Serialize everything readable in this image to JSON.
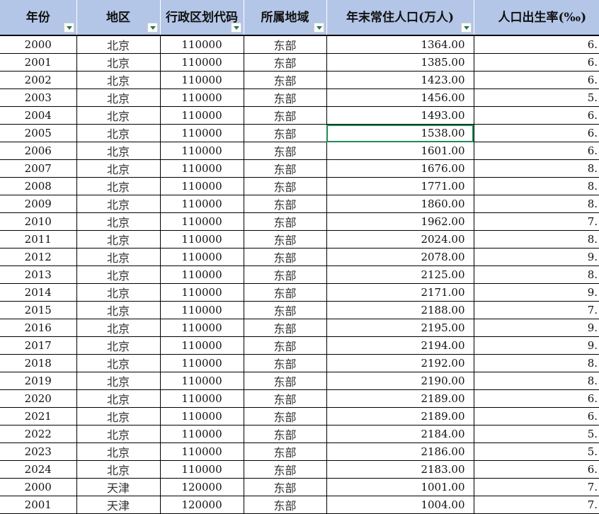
{
  "headers": [
    {
      "label": "年份",
      "filter": true
    },
    {
      "label": "地区",
      "filter": true
    },
    {
      "label": "行政区划代码",
      "filter": true
    },
    {
      "label": "所属地域",
      "filter": true
    },
    {
      "label": "年末常住人口(万人)",
      "filter": true
    },
    {
      "label": "人口出生率(‰)",
      "filter": false
    }
  ],
  "selected_cell": {
    "row": 5,
    "column": "年末常住人口(万人)"
  },
  "accent_color": "#1e8c5a",
  "header_color": "#b4c6e7",
  "rows": [
    [
      "2000",
      "北京",
      "110000",
      "东部",
      "1364.00",
      "6."
    ],
    [
      "2001",
      "北京",
      "110000",
      "东部",
      "1385.00",
      "6."
    ],
    [
      "2002",
      "北京",
      "110000",
      "东部",
      "1423.00",
      "6."
    ],
    [
      "2003",
      "北京",
      "110000",
      "东部",
      "1456.00",
      "5."
    ],
    [
      "2004",
      "北京",
      "110000",
      "东部",
      "1493.00",
      "6."
    ],
    [
      "2005",
      "北京",
      "110000",
      "东部",
      "1538.00",
      "6."
    ],
    [
      "2006",
      "北京",
      "110000",
      "东部",
      "1601.00",
      "6."
    ],
    [
      "2007",
      "北京",
      "110000",
      "东部",
      "1676.00",
      "8."
    ],
    [
      "2008",
      "北京",
      "110000",
      "东部",
      "1771.00",
      "8."
    ],
    [
      "2009",
      "北京",
      "110000",
      "东部",
      "1860.00",
      "8."
    ],
    [
      "2010",
      "北京",
      "110000",
      "东部",
      "1962.00",
      "7."
    ],
    [
      "2011",
      "北京",
      "110000",
      "东部",
      "2024.00",
      "8."
    ],
    [
      "2012",
      "北京",
      "110000",
      "东部",
      "2078.00",
      "9."
    ],
    [
      "2013",
      "北京",
      "110000",
      "东部",
      "2125.00",
      "8."
    ],
    [
      "2014",
      "北京",
      "110000",
      "东部",
      "2171.00",
      "9."
    ],
    [
      "2015",
      "北京",
      "110000",
      "东部",
      "2188.00",
      "7."
    ],
    [
      "2016",
      "北京",
      "110000",
      "东部",
      "2195.00",
      "9."
    ],
    [
      "2017",
      "北京",
      "110000",
      "东部",
      "2194.00",
      "9."
    ],
    [
      "2018",
      "北京",
      "110000",
      "东部",
      "2192.00",
      "8."
    ],
    [
      "2019",
      "北京",
      "110000",
      "东部",
      "2190.00",
      "8."
    ],
    [
      "2020",
      "北京",
      "110000",
      "东部",
      "2189.00",
      "6."
    ],
    [
      "2021",
      "北京",
      "110000",
      "东部",
      "2189.00",
      "6."
    ],
    [
      "2022",
      "北京",
      "110000",
      "东部",
      "2184.00",
      "5."
    ],
    [
      "2023",
      "北京",
      "110000",
      "东部",
      "2186.00",
      "5."
    ],
    [
      "2024",
      "北京",
      "110000",
      "东部",
      "2183.00",
      "6."
    ],
    [
      "2000",
      "天津",
      "120000",
      "东部",
      "1001.00",
      "7."
    ],
    [
      "2001",
      "天津",
      "120000",
      "东部",
      "1004.00",
      "7."
    ]
  ]
}
